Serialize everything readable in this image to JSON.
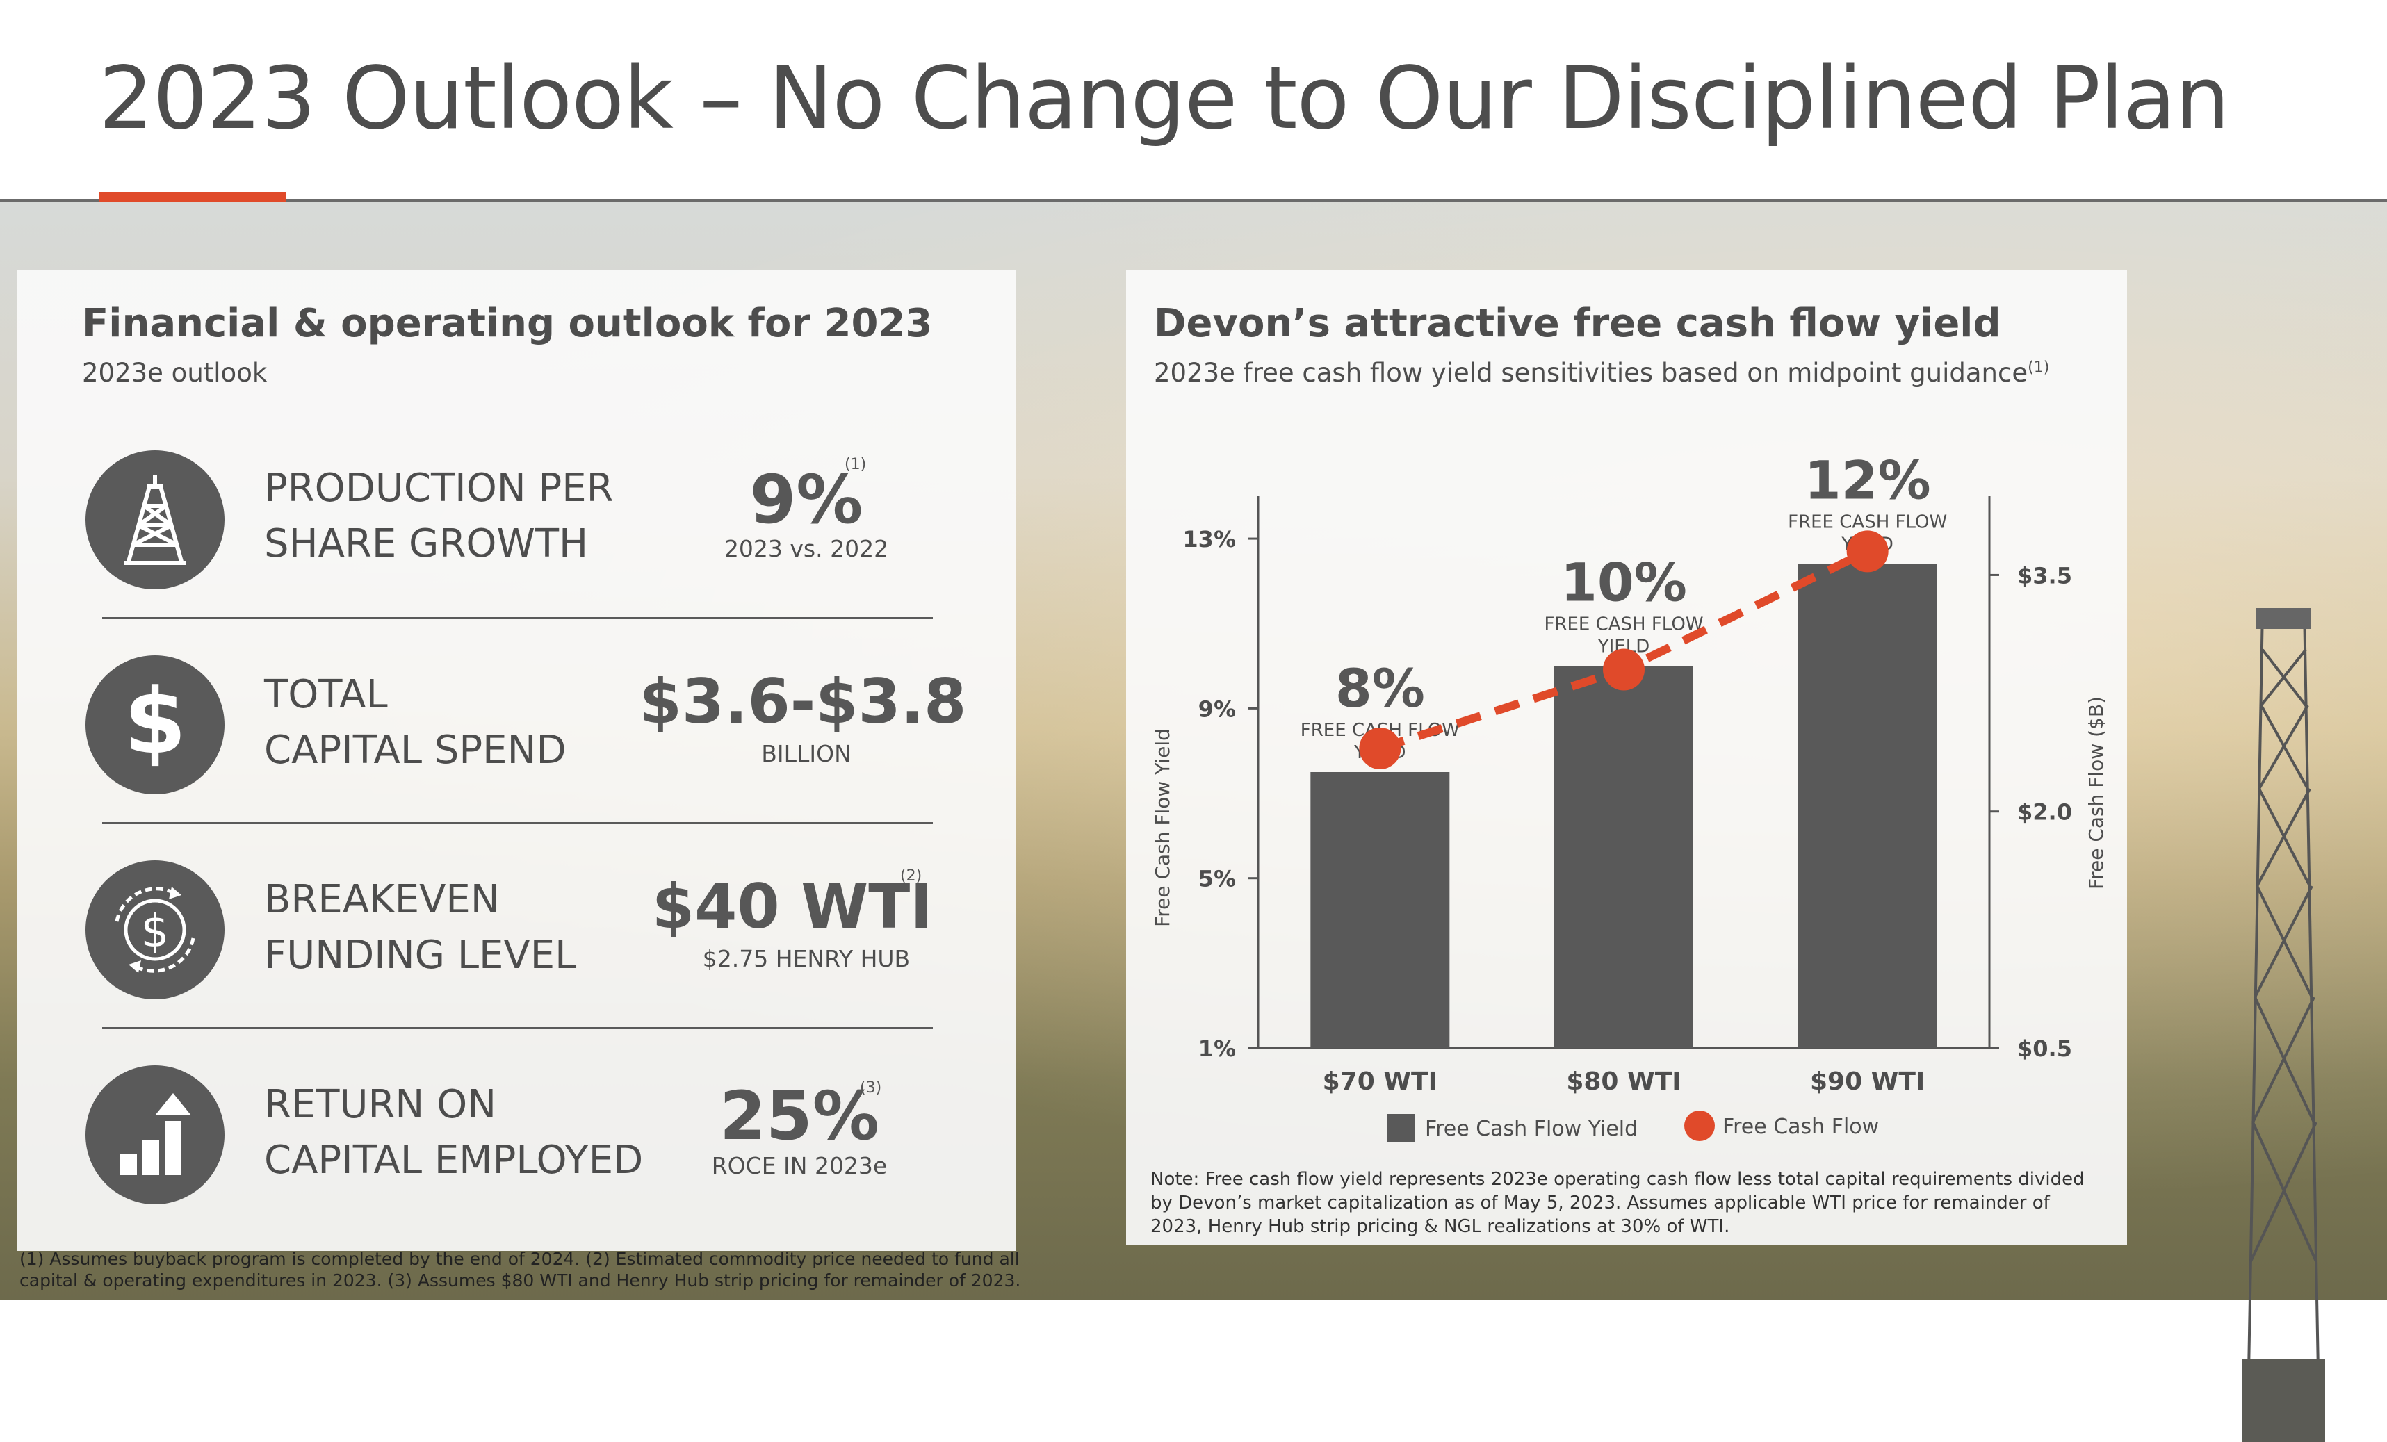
{
  "page": {
    "title": "2023 Outlook – No Change to Our Disciplined Plan",
    "footnote": "(1) Assumes buyback program is completed by the end of 2024. (2) Estimated commodity price needed to fund all capital & operating expenditures in 2023. (3) Assumes $80 WTI and Henry Hub strip pricing for remainder of 2023."
  },
  "left_panel": {
    "heading": "Financial & operating outlook for 2023",
    "subheading": "2023e outlook",
    "metrics": [
      {
        "icon": "oil-rig-icon",
        "label_line1": "PRODUCTION PER",
        "label_line2": "SHARE GROWTH",
        "value": "9%",
        "sub": "2023 vs. 2022",
        "footnote": "(1)"
      },
      {
        "icon": "dollar-icon",
        "label_line1": "TOTAL",
        "label_line2": "CAPITAL SPEND",
        "value": "$3.6-$3.8",
        "sub": "BILLION",
        "footnote": ""
      },
      {
        "icon": "cycle-dollar-icon",
        "label_line1": "BREAKEVEN",
        "label_line2": "FUNDING LEVEL",
        "value": "$40 WTI",
        "sub": "$2.75 HENRY HUB",
        "footnote": "(2)"
      },
      {
        "icon": "bar-growth-icon",
        "label_line1": "RETURN ON",
        "label_line2": "CAPITAL EMPLOYED",
        "value": "25%",
        "sub": "ROCE IN 2023e",
        "footnote": "(3)"
      }
    ]
  },
  "right_panel": {
    "heading": "Devon’s attractive free cash flow yield",
    "subheading": "2023e free cash flow yield sensitivities based on midpoint guidance",
    "subheading_footnote": "(1)",
    "note": "Note: Free cash flow yield represents 2023e operating cash flow less total capital requirements divided by Devon’s market capitalization as of May 5, 2023. Assumes applicable WTI price for remainder of 2023, Henry Hub strip pricing & NGL realizations at 30% of WTI."
  },
  "colors": {
    "accent": "#e04a2a",
    "bar": "#595959",
    "text": "#4d4d4d"
  },
  "chart_data": {
    "type": "bar",
    "categories": [
      "$70 WTI",
      "$80 WTI",
      "$90 WTI"
    ],
    "series": [
      {
        "name": "Free Cash Flow Yield",
        "type": "bar",
        "axis": "left",
        "values": [
          7.5,
          10.0,
          12.4
        ]
      },
      {
        "name": "Free Cash Flow",
        "type": "line",
        "axis": "right",
        "values": [
          2.4,
          2.9,
          3.65
        ]
      }
    ],
    "data_labels": [
      {
        "value": "8%",
        "caption_line1": "FREE CASH FLOW",
        "caption_line2": "YIELD"
      },
      {
        "value": "10%",
        "caption_line1": "FREE CASH FLOW",
        "caption_line2": "YIELD"
      },
      {
        "value": "12%",
        "caption_line1": "FREE CASH FLOW",
        "caption_line2": "YIELD"
      }
    ],
    "ylabel": "Free Cash Flow Yield",
    "y2label": "Free Cash Flow ($B)",
    "ylim": [
      1,
      14
    ],
    "y_ticks": [
      {
        "v": 1,
        "label": "1%"
      },
      {
        "v": 5,
        "label": "5%"
      },
      {
        "v": 9,
        "label": "9%"
      },
      {
        "v": 13,
        "label": "13%"
      }
    ],
    "y2lim": [
      0.5,
      4.0
    ],
    "y2_ticks": [
      {
        "v": 0.5,
        "label": "$0.5"
      },
      {
        "v": 2.0,
        "label": "$2.0"
      },
      {
        "v": 3.5,
        "label": "$3.5"
      }
    ],
    "legend": [
      "Free Cash Flow Yield",
      "Free Cash Flow"
    ],
    "legend_position": "bottom",
    "grid": false
  }
}
